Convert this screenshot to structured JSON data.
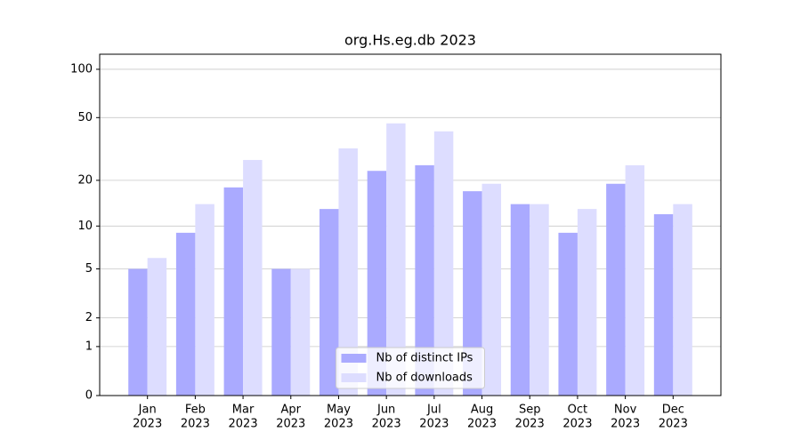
{
  "chart_data": {
    "type": "bar",
    "title": "org.Hs.eg.db 2023",
    "categories": [
      [
        "Jan",
        "2023"
      ],
      [
        "Feb",
        "2023"
      ],
      [
        "Mar",
        "2023"
      ],
      [
        "Apr",
        "2023"
      ],
      [
        "May",
        "2023"
      ],
      [
        "Jun",
        "2023"
      ],
      [
        "Jul",
        "2023"
      ],
      [
        "Aug",
        "2023"
      ],
      [
        "Sep",
        "2023"
      ],
      [
        "Oct",
        "2023"
      ],
      [
        "Nov",
        "2023"
      ],
      [
        "Dec",
        "2023"
      ]
    ],
    "series": [
      {
        "name": "Nb of distinct IPs",
        "color": "#aaaaff",
        "values": [
          5,
          9,
          18,
          5,
          13,
          23,
          25,
          17,
          14,
          9,
          19,
          12
        ]
      },
      {
        "name": "Nb of downloads",
        "color": "#ddddff",
        "values": [
          6,
          14,
          27,
          5,
          32,
          46,
          41,
          19,
          14,
          13,
          25,
          14
        ]
      }
    ],
    "yscale": "log1p",
    "ylim": [
      0,
      124
    ],
    "yticks": [
      0,
      1,
      2,
      5,
      10,
      20,
      50,
      100
    ],
    "grid": true,
    "legend": "lower center"
  }
}
